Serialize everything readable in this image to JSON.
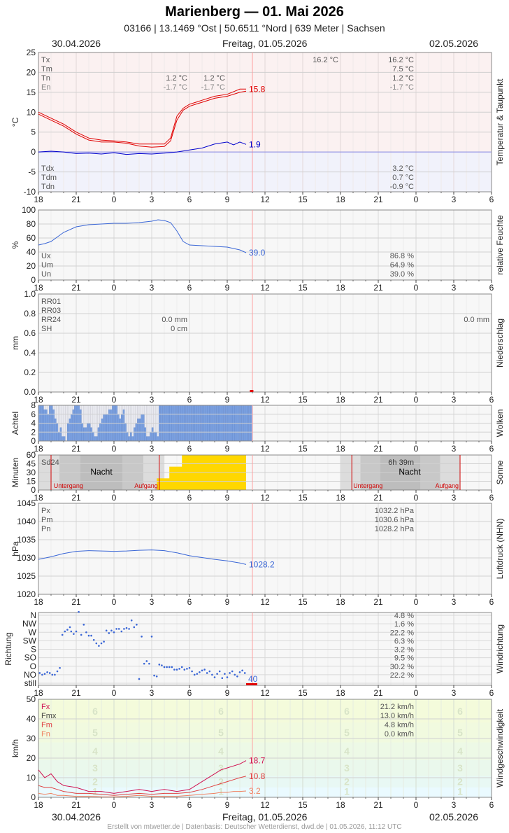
{
  "header": {
    "title": "Marienberg  —  01. Mai 2026",
    "subtitle": "03166  |  13.1469 °Ost  |  50.6511 °Nord  |  639 Meter  |  Sachsen",
    "date_left": "30.04.2026",
    "date_center": "Freitag, 01.05.2026",
    "date_right": "02.05.2026"
  },
  "footer": "Erstellt von mtwetter.de | Datenbasis: Deutscher Wetterdienst, dwd.de | 01.05.2026, 11:12 UTC",
  "colors": {
    "temp": "#e00000",
    "dew": "#0000cc",
    "humidity": "#3a66d6",
    "clouds": "#7aa0e0",
    "sun": "#ffd700",
    "pressure": "#3a66d6",
    "wind_dir": "#3a66d6",
    "gust": "#d01050",
    "wind_mean": "#e04040",
    "wind_min": "#f08060",
    "now_line": "#ffa0a0"
  },
  "chart_data": [
    {
      "id": "temperature",
      "type": "line",
      "ylabel": "°C",
      "side_label": "Temperatur & Taupunkt",
      "ylim": [
        -10,
        25
      ],
      "yticks": [
        -10,
        -5,
        0,
        5,
        10,
        15,
        20,
        25
      ],
      "xticks": [
        "18",
        "21",
        "0",
        "3",
        "6",
        "9",
        "12",
        "15",
        "18",
        "21",
        "0",
        "3",
        "6"
      ],
      "stat_labels": [
        "Tx",
        "Tm",
        "Tn",
        "En"
      ],
      "dew_labels": [
        "Tdx",
        "Tdm",
        "Tdn"
      ],
      "day1_stats": {
        "Tn": "1.2 °C",
        "En": "-1.7 °C"
      },
      "day2_stats": {
        "Tn": "1.2 °C",
        "En": "-1.7 °C"
      },
      "day2_tx": "16.2 °C",
      "right_stats": {
        "Tx": "16.2 °C",
        "Tm": "7.5 °C",
        "Tn": "1.2 °C",
        "En": "-1.7 °C",
        "Tdx": "3.2 °C",
        "Tdm": "0.7 °C",
        "Tdn": "-0.9 °C"
      },
      "series": [
        {
          "name": "T",
          "x": [
            0,
            1,
            2,
            3,
            4,
            5,
            6,
            7,
            8,
            9,
            10,
            10.5,
            11,
            11.5,
            12,
            12.5,
            13,
            14,
            15,
            16,
            16.5
          ],
          "values": [
            10,
            8.5,
            7,
            5,
            3.5,
            3,
            2.8,
            2.5,
            2,
            2,
            2,
            3.5,
            9,
            11,
            12,
            12.5,
            13,
            14,
            14.5,
            15.8,
            15.8
          ]
        },
        {
          "name": "T5",
          "x": [
            0,
            1,
            2,
            3,
            4,
            5,
            6,
            7,
            8,
            9,
            10,
            10.5,
            11,
            11.5,
            12,
            12.5,
            13,
            14,
            15,
            16,
            16.5
          ],
          "values": [
            9.5,
            8,
            6.5,
            4.5,
            3,
            2.5,
            2.5,
            2.2,
            1.5,
            1.2,
            1.4,
            2.8,
            8,
            10.5,
            11.5,
            12,
            12.5,
            13.5,
            14,
            15,
            15.3
          ]
        },
        {
          "name": "Td",
          "x": [
            0,
            1,
            2,
            3,
            4,
            5,
            6,
            7,
            8,
            9,
            10,
            11,
            12,
            13,
            14,
            15,
            15.5,
            16,
            16.5
          ],
          "values": [
            0,
            0.2,
            0,
            -0.4,
            -0.3,
            -0.5,
            -0.2,
            -0.6,
            -0.4,
            -0.5,
            -0.3,
            0,
            0.5,
            1,
            2,
            2.5,
            1.8,
            2.5,
            1.9
          ]
        }
      ],
      "end_labels": {
        "temp": "15.8",
        "dew": "1.9"
      }
    },
    {
      "id": "humidity",
      "type": "line",
      "ylabel": "%",
      "side_label": "relative Feuchte",
      "ylim": [
        0,
        100
      ],
      "yticks": [
        0,
        20,
        40,
        60,
        80,
        100
      ],
      "xticks": [
        "18",
        "21",
        "0",
        "3",
        "6",
        "9",
        "12",
        "15",
        "18",
        "21",
        "0",
        "3",
        "6"
      ],
      "stat_labels": [
        "Ux",
        "Um",
        "Un"
      ],
      "right_stats": {
        "Ux": "86.8 %",
        "Um": "64.9 %",
        "Un": "39.0 %"
      },
      "series": [
        {
          "name": "U",
          "x": [
            0,
            0.5,
            1,
            2,
            3,
            4,
            5,
            6,
            7,
            8,
            9,
            9.5,
            10,
            10.5,
            11,
            11.5,
            12,
            13,
            14,
            15,
            15.5,
            16,
            16.5
          ],
          "values": [
            50,
            52,
            55,
            68,
            76,
            79,
            80,
            81,
            81,
            82,
            84,
            86,
            85,
            82,
            70,
            55,
            50,
            49,
            48,
            47,
            45,
            43,
            39
          ]
        }
      ],
      "end_label": "39.0"
    },
    {
      "id": "precipitation",
      "type": "bar",
      "ylabel": "mm",
      "side_label": "Niederschlag",
      "ylim": [
        0,
        1.0
      ],
      "yticks": [
        "0.0",
        "0.2",
        "0.4",
        "0.6",
        "0.8",
        "1.0"
      ],
      "xticks": [
        "18",
        "21",
        "0",
        "3",
        "6",
        "9",
        "12",
        "15",
        "18",
        "21",
        "0",
        "3",
        "6"
      ],
      "stat_labels": [
        "RR01",
        "RR03",
        "RR24",
        "SH"
      ],
      "day1_stats": {
        "RR24": "0.0 mm",
        "SH": "0 cm"
      },
      "day2_stats": {
        "RR24": "0.0 mm"
      },
      "values": [
        0
      ]
    },
    {
      "id": "clouds",
      "type": "bar",
      "ylabel": "Achtel",
      "side_label": "Wolken",
      "ylim": [
        0,
        8
      ],
      "yticks": [
        0,
        2,
        4,
        6,
        8
      ],
      "xticks": [
        "18",
        "21",
        "0",
        "3",
        "6",
        "9",
        "12",
        "15",
        "18",
        "21",
        "0",
        "3",
        "6"
      ],
      "values": [
        8,
        8,
        8,
        7,
        7,
        6,
        8,
        8,
        7,
        5,
        4,
        2,
        3,
        1,
        1,
        0,
        4,
        5,
        6,
        7,
        8,
        8,
        8,
        7,
        4,
        3,
        3,
        4,
        4,
        3,
        2,
        1,
        1,
        3,
        4,
        5,
        6,
        6,
        6,
        7,
        7,
        8,
        8,
        8,
        6,
        5,
        6,
        7,
        4,
        2,
        1,
        2,
        1,
        3,
        4,
        5,
        5,
        6,
        6,
        3,
        1,
        1,
        2,
        3,
        2,
        2,
        1,
        8,
        8,
        8,
        8,
        8,
        8,
        8,
        8,
        8,
        8,
        8,
        8,
        8,
        8,
        8,
        8,
        8,
        8,
        8,
        8,
        8,
        8,
        8,
        8,
        8,
        8,
        8,
        8,
        8,
        8,
        8,
        8,
        8,
        8,
        8,
        8,
        8,
        8,
        8,
        8,
        8,
        8,
        8,
        8,
        8,
        8,
        8,
        8,
        8,
        8,
        8,
        8
      ]
    },
    {
      "id": "sunshine",
      "type": "bar",
      "ylabel": "Minuten",
      "side_label": "Sonne",
      "ylim": [
        0,
        60
      ],
      "yticks": [
        0,
        15,
        30,
        45,
        60
      ],
      "xticks": [
        "18",
        "21",
        "0",
        "3",
        "6",
        "9",
        "12",
        "15",
        "18",
        "21",
        "0",
        "3",
        "6"
      ],
      "sd24_label": "Sd24",
      "night_label": "Nacht",
      "sunset_label": "Untergang",
      "sunrise_label": "Aufgang",
      "day2_sd": "6h 39m",
      "hours": [
        10,
        11,
        12,
        13,
        14,
        15,
        16
      ],
      "values": [
        20,
        40,
        60,
        60,
        60,
        60,
        60
      ]
    },
    {
      "id": "pressure",
      "type": "line",
      "ylabel": "hPa",
      "side_label": "Luftdruck (NHN)",
      "ylim": [
        1020,
        1045
      ],
      "yticks": [
        1020,
        1025,
        1030,
        1035,
        1040,
        1045
      ],
      "xticks": [
        "18",
        "21",
        "0",
        "3",
        "6",
        "9",
        "12",
        "15",
        "18",
        "21",
        "0",
        "3",
        "6"
      ],
      "stat_labels": [
        "Px",
        "Pm",
        "Pn"
      ],
      "right_stats": {
        "Px": "1032.2 hPa",
        "Pm": "1030.6 hPa",
        "Pn": "1028.2 hPa"
      },
      "series": [
        {
          "name": "P",
          "x": [
            0,
            1,
            2,
            3,
            4,
            5,
            6,
            7,
            8,
            9,
            10,
            11,
            12,
            13,
            14,
            15,
            16,
            16.5
          ],
          "values": [
            1029.6,
            1030.3,
            1031.2,
            1031.8,
            1032.0,
            1031.9,
            1031.8,
            1031.9,
            1032.1,
            1032.2,
            1032.0,
            1031.4,
            1030.6,
            1030.1,
            1029.6,
            1029.2,
            1028.6,
            1028.2
          ]
        }
      ],
      "end_label": "1028.2"
    },
    {
      "id": "wind_direction",
      "type": "scatter",
      "ylabel": "Richtung",
      "side_label": "Windrichtung",
      "categories": [
        "still",
        "NO",
        "O",
        "SO",
        "S",
        "SW",
        "W",
        "NW",
        "N"
      ],
      "xticks": [
        "18",
        "21",
        "0",
        "3",
        "6",
        "9",
        "12",
        "15",
        "18",
        "21",
        "0",
        "3",
        "6"
      ],
      "right_stats": [
        "4.8 %",
        "1.6 %",
        "22.2 %",
        "6.3 %",
        "3.2 %",
        "9.5 %",
        "30.2 %",
        "22.2 %"
      ],
      "end_label": "40",
      "points_x": [
        0.1,
        0.3,
        0.5,
        0.7,
        0.9,
        1.1,
        1.3,
        1.5,
        1.7,
        1.9,
        2.1,
        2.3,
        2.5,
        2.6,
        2.8,
        3.0,
        3.2,
        3.4,
        3.6,
        3.8,
        4.0,
        4.2,
        4.4,
        4.6,
        4.8,
        5.0,
        5.2,
        5.4,
        5.6,
        5.8,
        6.0,
        6.2,
        6.4,
        6.6,
        6.8,
        7.0,
        7.2,
        7.4,
        7.6,
        7.8,
        8.0,
        8.2,
        8.4,
        8.6,
        8.8,
        9.0,
        9.2,
        9.4,
        9.6,
        9.8,
        10.0,
        10.2,
        10.4,
        10.6,
        10.8,
        11.0,
        11.2,
        11.4,
        11.6,
        11.8,
        12.0,
        12.2,
        12.4,
        12.6,
        12.8,
        13.0,
        13.2,
        13.4,
        13.6,
        13.8,
        14.0,
        14.2,
        14.4,
        14.6,
        14.8,
        15.0,
        15.2,
        15.4,
        15.6,
        15.8,
        16.0,
        16.2,
        16.4
      ],
      "points_y": [
        1.2,
        1.0,
        1.1,
        1.3,
        1.2,
        1.0,
        1.0,
        1.4,
        1.8,
        5.7,
        6.1,
        6.3,
        6.6,
        6.1,
        5.8,
        6.1,
        8.4,
        5.7,
        6.9,
        6.0,
        5.6,
        5.6,
        5.1,
        4.7,
        4.4,
        4.7,
        4.9,
        6.2,
        5.9,
        6.2,
        6.0,
        6.4,
        6.4,
        6.1,
        6.4,
        6.5,
        6.4,
        7.4,
        6.6,
        6.9,
        0.5,
        5.5,
        2.3,
        2.6,
        2.3,
        5.5,
        0.9,
        0.8,
        2.2,
        2.1,
        1.9,
        1.9,
        1.9,
        1.9,
        1.6,
        1.6,
        1.7,
        1.9,
        1.6,
        1.7,
        1.8,
        1.4,
        1.0,
        1.1,
        1.3,
        1.5,
        1.6,
        1.2,
        1.4,
        1.0,
        0.7,
        1.1,
        1.4,
        0.6,
        1.1,
        0.7,
        1.2,
        1.4,
        1.0,
        0.8,
        1.3,
        1.5,
        1.2
      ]
    },
    {
      "id": "wind_speed",
      "type": "line",
      "ylabel": "km/h",
      "side_label": "Windgeschwindigkeit",
      "ylim": [
        0,
        50
      ],
      "yticks": [
        0,
        10,
        20,
        30,
        40,
        50
      ],
      "xticks": [
        "18",
        "21",
        "0",
        "3",
        "6",
        "9",
        "12",
        "15",
        "18",
        "21",
        "0",
        "3",
        "6"
      ],
      "stat_labels": [
        "Fx",
        "Fmx",
        "Fm",
        "Fn"
      ],
      "right_stats": {
        "Fx": "21.2 km/h",
        "Fmx": "13.0 km/h",
        "Fm": "4.8 km/h",
        "Fn": "0.0 km/h"
      },
      "beaufort": [
        "1",
        "2",
        "3",
        "4",
        "5",
        "6"
      ],
      "series": [
        {
          "name": "gust",
          "x": [
            0,
            0.5,
            1,
            1.5,
            2,
            3,
            4,
            5,
            6,
            7,
            8,
            9,
            10,
            11,
            12,
            13,
            14,
            14.5,
            15,
            15.5,
            16,
            16.5
          ],
          "values": [
            14,
            10,
            12,
            8,
            6,
            5,
            3,
            3,
            2,
            3,
            4,
            3,
            4,
            3,
            4,
            8,
            12,
            14,
            15,
            16,
            17,
            18.7
          ]
        },
        {
          "name": "mean",
          "x": [
            0,
            0.5,
            1,
            1.5,
            2,
            3,
            4,
            5,
            6,
            7,
            8,
            9,
            10,
            11,
            12,
            13,
            14,
            14.5,
            15,
            15.5,
            16,
            16.5
          ],
          "values": [
            6,
            5,
            5,
            4,
            3,
            2,
            2,
            1.5,
            1,
            1.5,
            2,
            1.5,
            2,
            2,
            2.5,
            4,
            6,
            7,
            8,
            9,
            10,
            10.8
          ]
        },
        {
          "name": "min",
          "x": [
            0,
            0.5,
            1,
            1.5,
            2,
            3,
            4,
            5,
            6,
            7,
            8,
            9,
            10,
            11,
            12,
            13,
            14,
            14.5,
            15,
            15.5,
            16,
            16.5
          ],
          "values": [
            2,
            1.5,
            2,
            1,
            1,
            0.5,
            0.5,
            0.3,
            0.2,
            0.5,
            1,
            0.5,
            0.5,
            0.5,
            1,
            1.5,
            2,
            2.5,
            2.5,
            3,
            3,
            3.2
          ]
        }
      ],
      "end_labels": {
        "gust": "18.7",
        "mean": "10.8",
        "min": "3.2"
      }
    }
  ]
}
